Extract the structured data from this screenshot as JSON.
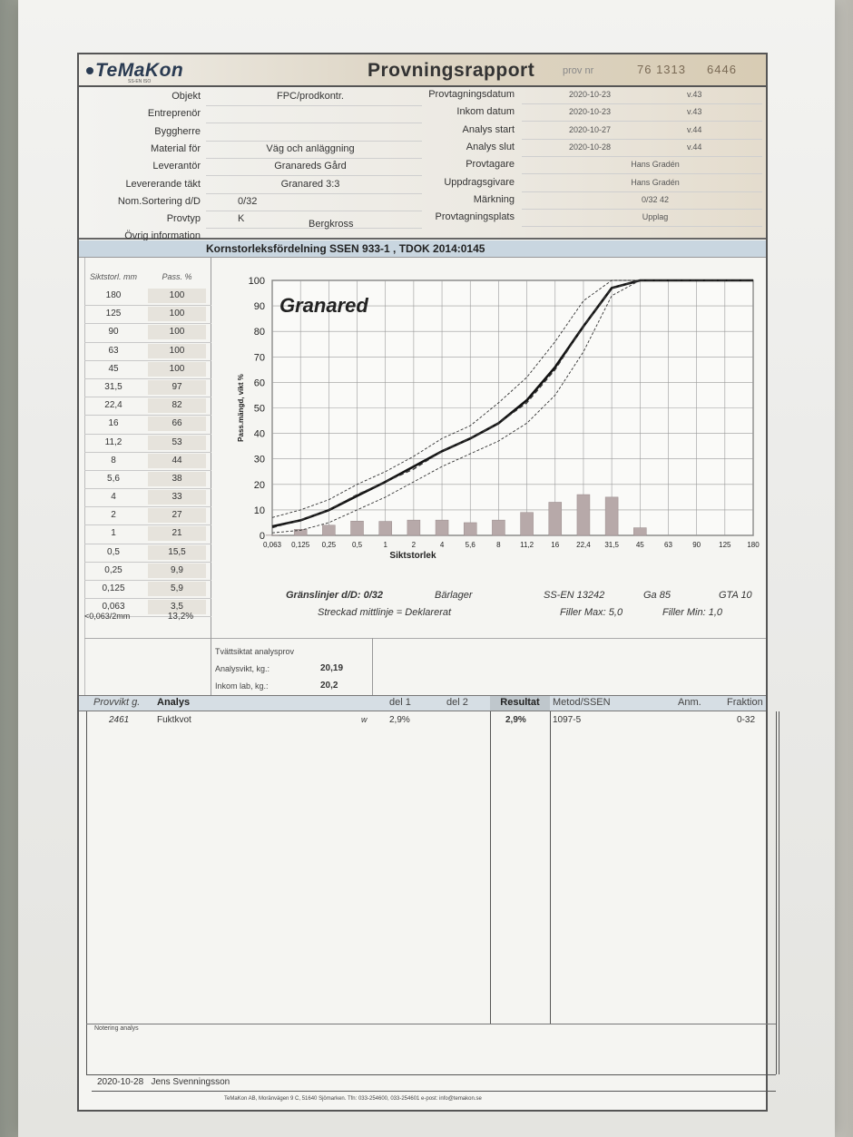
{
  "header": {
    "logo": "TeMaKon",
    "logo_sub": "SS-EN ISO",
    "title": "Provningsrapport",
    "provnr_label": "prov nr",
    "provnr": "76 1313     6446"
  },
  "info_left": [
    {
      "label": "Objekt",
      "value": "FPC/prodkontr."
    },
    {
      "label": "Entreprenör",
      "value": ""
    },
    {
      "label": "Byggherre",
      "value": ""
    },
    {
      "label": "Material för",
      "value": "Väg och anläggning"
    },
    {
      "label": "Leverantör",
      "value": "Granareds Gård"
    },
    {
      "label": "Levererande täkt",
      "value": "Granared 3:3"
    },
    {
      "label": "Nom.Sortering d/D",
      "value": "0/32"
    },
    {
      "label": "Provtyp",
      "value": "K"
    },
    {
      "label": "Övrig information",
      "value": ""
    }
  ],
  "provtyp_extra": "Bergkross",
  "info_right": [
    {
      "label": "Provtagningsdatum",
      "value": "2020-10-23",
      "week": "v.43"
    },
    {
      "label": "Inkom datum",
      "value": "2020-10-23",
      "week": "v.43"
    },
    {
      "label": "Analys start",
      "value": "2020-10-27",
      "week": "v.44"
    },
    {
      "label": "Analys slut",
      "value": "2020-10-28",
      "week": "v.44"
    },
    {
      "label": "Provtagare",
      "value": "Hans Gradén",
      "week": ""
    },
    {
      "label": "Uppdragsgivare",
      "value": "Hans Gradén",
      "week": ""
    },
    {
      "label": "Märkning",
      "value": "0/32 42",
      "week": ""
    },
    {
      "label": "Provtagningsplats",
      "value": "Upplag",
      "week": ""
    }
  ],
  "section_title": "Kornstorleksfördelning SSEN 933-1 , TDOK 2014:0145",
  "sieve_table": {
    "col1": "Siktstorl. mm",
    "col2": "Pass. %",
    "rows": [
      [
        "180",
        "100"
      ],
      [
        "125",
        "100"
      ],
      [
        "90",
        "100"
      ],
      [
        "63",
        "100"
      ],
      [
        "45",
        "100"
      ],
      [
        "31,5",
        "97"
      ],
      [
        "22,4",
        "82"
      ],
      [
        "16",
        "66"
      ],
      [
        "11,2",
        "53"
      ],
      [
        "8",
        "44"
      ],
      [
        "5,6",
        "38"
      ],
      [
        "4",
        "33"
      ],
      [
        "2",
        "27"
      ],
      [
        "1",
        "21"
      ],
      [
        "0,5",
        "15,5"
      ],
      [
        "0,25",
        "9,9"
      ],
      [
        "0,125",
        "5,9"
      ],
      [
        "0,063",
        "3,5"
      ]
    ],
    "fines_label": "<0,063/2mm",
    "fines_value": "13,2%"
  },
  "chart_data": {
    "type": "line",
    "title": "Granared",
    "xlabel": "Siktstorlek",
    "ylabel": "Pass.mängd, vikt %",
    "x_ticks": [
      "0,063",
      "0,125",
      "0,25",
      "0,5",
      "1",
      "2",
      "4",
      "5,6",
      "8",
      "11,2",
      "16",
      "22,4",
      "31,5",
      "45",
      "63",
      "90",
      "125",
      "180"
    ],
    "ylim": [
      0,
      100
    ],
    "y_ticks": [
      0,
      10,
      20,
      30,
      40,
      50,
      60,
      70,
      80,
      90,
      100
    ],
    "grid": true,
    "series": [
      {
        "values": [
          3.5,
          5.9,
          9.9,
          15.5,
          21,
          27,
          33,
          38,
          44,
          53,
          66,
          82,
          97,
          100,
          100,
          100,
          100,
          100
        ]
      },
      {
        "values": [
          3,
          6,
          10,
          16,
          21,
          26,
          33,
          38,
          44,
          52,
          65,
          82,
          97,
          100,
          100,
          100,
          100,
          100
        ]
      },
      {
        "values": [
          7,
          10,
          14,
          20,
          25,
          31,
          38,
          43,
          52,
          62,
          76,
          92,
          100,
          100,
          100,
          100,
          100,
          100
        ]
      },
      {
        "values": [
          1,
          2,
          5,
          10,
          15,
          21,
          27,
          32,
          37,
          44,
          55,
          72,
          94,
          100,
          100,
          100,
          100,
          100
        ]
      }
    ],
    "bars": [
      0.1,
      2.4,
      4.0,
      5.6,
      5.5,
      6.0,
      6.0,
      5.0,
      6.0,
      9.0,
      13.0,
      16.0,
      15.0,
      3.0,
      0,
      0,
      0,
      0
    ]
  },
  "chart_footer": {
    "granslinjer": "Gränslinjer d/D: 0/32",
    "barlager": "Bärlager",
    "standard": "SS-EN 13242",
    "ga": "Ga 85",
    "gta": "GTA 10",
    "streckad": "Streckad mittlinje = Deklarerat",
    "filler_max": "Filler Max: 5,0",
    "filler_min": "Filler Min: 1,0"
  },
  "washed": {
    "title": "Tvättsiktat analysprov",
    "analysvikt_label": "Analysvikt, kg.:",
    "analysvikt": "20,19",
    "inkom_label": "Inkom lab, kg.:",
    "inkom": "20,2"
  },
  "analys_table": {
    "headers": {
      "provvikt": "Provvikt g.",
      "analys": "Analys",
      "del1": "del 1",
      "del2": "del 2",
      "resultat": "Resultat",
      "metod": "Metod/SSEN",
      "anm": "Anm.",
      "fraktion": "Fraktion"
    },
    "rows": [
      {
        "provvikt": "2461",
        "analys": "Fuktkvot",
        "unit": "w",
        "del1": "2,9%",
        "del2": "",
        "resultat": "2,9%",
        "metod": "1097-5",
        "anm": "",
        "fraktion": "0-32"
      }
    ]
  },
  "notering_label": "Notering analys",
  "signature": "2020-10-28   Jens Svenningsson",
  "footer": "TeMaKon AB, Moränvägen 9 C, 51640 Sjömarken. Tfn: 033-254600, 033-254601  e-post: info@temakon.se"
}
